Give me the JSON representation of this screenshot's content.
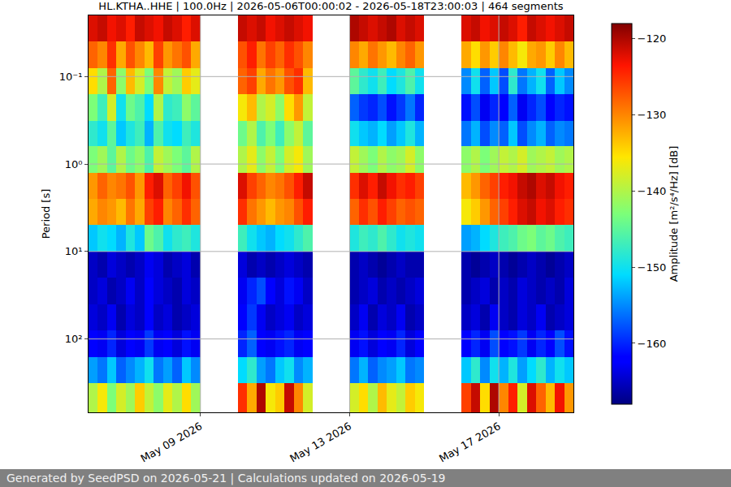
{
  "chart_data": {
    "type": "heatmap",
    "title": "HL.KTHA..HHE | 100.0Hz | 2026-05-06T00:00:02 - 2026-05-18T23:00:03 | 464 segments",
    "footer": "Generated by SeedPSD on 2026-05-21 | Calculations updated on 2026-05-19",
    "ylabel": "Period [s]",
    "x_edges": [
      "2026-05-06T00:00",
      "2026-05-06T06:00",
      "2026-05-06T12:00",
      "2026-05-06T18:00",
      "2026-05-07T00:00",
      "2026-05-07T06:00",
      "2026-05-07T12:00",
      "2026-05-07T18:00",
      "2026-05-08T00:00",
      "2026-05-08T06:00",
      "2026-05-08T12:00",
      "2026-05-08T18:00",
      "2026-05-09T00:00",
      "2026-05-09T06:00",
      "2026-05-09T12:00",
      "2026-05-09T18:00",
      "2026-05-10T00:00",
      "2026-05-10T06:00",
      "2026-05-10T12:00",
      "2026-05-10T18:00",
      "2026-05-11T00:00",
      "2026-05-11T06:00",
      "2026-05-11T12:00",
      "2026-05-11T18:00",
      "2026-05-12T00:00",
      "2026-05-12T06:00",
      "2026-05-12T12:00",
      "2026-05-12T18:00",
      "2026-05-13T00:00",
      "2026-05-13T06:00",
      "2026-05-13T12:00",
      "2026-05-13T18:00",
      "2026-05-14T00:00",
      "2026-05-14T06:00",
      "2026-05-14T12:00",
      "2026-05-14T18:00",
      "2026-05-15T00:00",
      "2026-05-15T06:00",
      "2026-05-15T12:00",
      "2026-05-15T18:00",
      "2026-05-16T00:00",
      "2026-05-16T06:00",
      "2026-05-16T12:00",
      "2026-05-16T18:00",
      "2026-05-17T00:00",
      "2026-05-17T06:00",
      "2026-05-17T12:00",
      "2026-05-17T18:00",
      "2026-05-18T00:00",
      "2026-05-18T06:00",
      "2026-05-18T12:00",
      "2026-05-18T18:00",
      "2026-05-19T00:00"
    ],
    "period_edges": [
      0.02,
      0.04,
      0.08,
      0.16,
      0.32,
      0.63,
      1.26,
      2.5,
      5,
      10,
      20,
      40,
      80,
      160,
      320,
      690
    ],
    "cells": [
      [
        -122,
        -121,
        -123,
        -122,
        -124,
        -121,
        -122,
        -123,
        -121,
        -122,
        -124,
        -122,
        null,
        null,
        null,
        null,
        -121,
        -122,
        -121,
        -123,
        -122,
        -121,
        -122,
        -123,
        null,
        null,
        null,
        null,
        -120,
        -121,
        -122,
        -121,
        -120,
        -122,
        -121,
        -122,
        null,
        null,
        null,
        null,
        -122,
        -121,
        -123,
        -122,
        -121,
        -122,
        -124,
        -121,
        -122,
        -123,
        -122,
        -121
      ],
      [
        -128,
        -130,
        -125,
        -132,
        -127,
        -130,
        -133,
        -126,
        -131,
        -129,
        -127,
        -132,
        null,
        null,
        null,
        null,
        -127,
        -124,
        -129,
        -126,
        -128,
        -125,
        -127,
        -130,
        null,
        null,
        null,
        null,
        -130,
        -132,
        -129,
        -131,
        -133,
        -130,
        -128,
        -131,
        null,
        null,
        null,
        null,
        -132,
        -135,
        -131,
        -134,
        -130,
        -133,
        -136,
        -132,
        -131,
        -134,
        -130,
        -133
      ],
      [
        -135,
        -140,
        -128,
        -142,
        -133,
        -138,
        -143,
        -130,
        -139,
        -141,
        -134,
        -137,
        null,
        null,
        null,
        null,
        -128,
        -126,
        -132,
        -129,
        -131,
        -127,
        -125,
        -133,
        null,
        null,
        null,
        null,
        -145,
        -148,
        -150,
        -147,
        -151,
        -149,
        -146,
        -150,
        null,
        null,
        null,
        null,
        -155,
        -150,
        -157,
        -152,
        -158,
        -148,
        -156,
        -153,
        -150,
        -157,
        -152,
        -155
      ],
      [
        -143,
        -147,
        -138,
        -150,
        -144,
        -146,
        -151,
        -140,
        -148,
        -147,
        -142,
        -145,
        null,
        null,
        null,
        null,
        -136,
        -133,
        -140,
        -138,
        -142,
        -135,
        -131,
        -139,
        null,
        null,
        null,
        null,
        -157,
        -159,
        -160,
        -158,
        -161,
        -159,
        -156,
        -160,
        null,
        null,
        null,
        null,
        -161,
        -158,
        -163,
        -160,
        -162,
        -157,
        -163,
        -160,
        -158,
        -162,
        -160,
        -161
      ],
      [
        -148,
        -150,
        -145,
        -152,
        -149,
        -147,
        -153,
        -146,
        -150,
        -151,
        -147,
        -149,
        null,
        null,
        null,
        null,
        -144,
        -140,
        -146,
        -143,
        -147,
        -142,
        -139,
        -145,
        null,
        null,
        null,
        null,
        -150,
        -152,
        -153,
        -151,
        -154,
        -152,
        -149,
        -153,
        null,
        null,
        null,
        null,
        -156,
        -153,
        -158,
        -155,
        -157,
        -152,
        -158,
        -155,
        -153,
        -157,
        -155,
        -156
      ],
      [
        -143,
        -141,
        -145,
        -140,
        -144,
        -142,
        -146,
        -139,
        -141,
        -143,
        -145,
        -140,
        null,
        null,
        null,
        null,
        -140,
        -137,
        -142,
        -139,
        -143,
        -138,
        -136,
        -141,
        null,
        null,
        null,
        null,
        -139,
        -141,
        -143,
        -140,
        -142,
        -141,
        -138,
        -142,
        null,
        null,
        null,
        null,
        -142,
        -140,
        -143,
        -141,
        -139,
        -140,
        -138,
        -141,
        -140,
        -139,
        -141,
        -140
      ],
      [
        -131,
        -128,
        -130,
        -129,
        -127,
        -131,
        -124,
        -122,
        -128,
        -126,
        -123,
        -127,
        null,
        null,
        null,
        null,
        -122,
        -126,
        -128,
        -130,
        -129,
        -127,
        -124,
        -121,
        null,
        null,
        null,
        null,
        -125,
        -122,
        -124,
        -121,
        -123,
        -125,
        -124,
        -126,
        null,
        null,
        null,
        null,
        -133,
        -131,
        -128,
        -126,
        -124,
        -123,
        -121,
        -120,
        -122,
        -121,
        -123,
        -124
      ],
      [
        -132,
        -130,
        -131,
        -133,
        -129,
        -132,
        -126,
        -124,
        -130,
        -128,
        -125,
        -128,
        null,
        null,
        null,
        null,
        -125,
        -129,
        -131,
        -133,
        -131,
        -130,
        -127,
        -124,
        null,
        null,
        null,
        null,
        -128,
        -125,
        -127,
        -124,
        -126,
        -128,
        -127,
        -128,
        null,
        null,
        null,
        null,
        -136,
        -134,
        -131,
        -128,
        -126,
        -124,
        -122,
        -121,
        -123,
        -122,
        -124,
        -125
      ],
      [
        -152,
        -150,
        -151,
        -153,
        -149,
        -152,
        -144,
        -146,
        -150,
        -148,
        -147,
        -149,
        null,
        null,
        null,
        null,
        -147,
        -150,
        -152,
        -153,
        -151,
        -150,
        -148,
        -146,
        null,
        null,
        null,
        null,
        -149,
        -147,
        -148,
        -146,
        -148,
        -150,
        -149,
        -150,
        null,
        null,
        null,
        null,
        -154,
        -153,
        -151,
        -149,
        -147,
        -146,
        -144,
        -143,
        -145,
        -144,
        -146,
        -147
      ],
      [
        -165,
        -166,
        -164,
        -165,
        -166,
        -165,
        -163,
        -164,
        -166,
        -165,
        -164,
        -166,
        null,
        null,
        null,
        null,
        -164,
        -166,
        -165,
        -166,
        -165,
        -164,
        -165,
        -166,
        null,
        null,
        null,
        null,
        -166,
        -165,
        -166,
        -167,
        -166,
        -165,
        -166,
        -166,
        null,
        null,
        null,
        null,
        -166,
        -167,
        -166,
        -165,
        -166,
        -167,
        -166,
        -165,
        -166,
        -167,
        -166,
        -165
      ],
      [
        -165,
        -164,
        -166,
        -165,
        -163,
        -165,
        -162,
        -164,
        -165,
        -166,
        -164,
        -165,
        null,
        null,
        null,
        null,
        -163,
        -160,
        -158,
        -162,
        -164,
        -161,
        -163,
        -165,
        null,
        null,
        null,
        null,
        -166,
        -165,
        -164,
        -166,
        -165,
        -166,
        -165,
        -164,
        null,
        null,
        null,
        null,
        -166,
        -165,
        -164,
        -166,
        -165,
        -166,
        -164,
        -165,
        -166,
        -165,
        -166,
        -164
      ],
      [
        -164,
        -165,
        -163,
        -166,
        -164,
        -165,
        -162,
        -165,
        -164,
        -166,
        -165,
        -164,
        null,
        null,
        null,
        null,
        -162,
        -159,
        -163,
        -165,
        -164,
        -163,
        -165,
        -164,
        null,
        null,
        null,
        null,
        -165,
        -163,
        -166,
        -164,
        -165,
        -163,
        -166,
        -165,
        null,
        null,
        null,
        null,
        -165,
        -164,
        -166,
        -163,
        -165,
        -166,
        -164,
        -165,
        -163,
        -166,
        -165,
        -164
      ],
      [
        -162,
        -163,
        -160,
        -164,
        -162,
        -163,
        -159,
        -163,
        -162,
        -164,
        -161,
        -163,
        null,
        null,
        null,
        null,
        -160,
        -157,
        -162,
        -163,
        -161,
        -160,
        -163,
        -162,
        null,
        null,
        null,
        null,
        -163,
        -161,
        -164,
        -162,
        -163,
        -160,
        -164,
        -162,
        null,
        null,
        null,
        null,
        -162,
        -160,
        -163,
        -158,
        -162,
        -161,
        -159,
        -163,
        -160,
        -162,
        -158,
        -161
      ],
      [
        -154,
        -156,
        -152,
        -157,
        -155,
        -153,
        -150,
        -156,
        -154,
        -157,
        -152,
        -155,
        null,
        null,
        null,
        null,
        -151,
        -148,
        -154,
        -156,
        -152,
        -150,
        -155,
        -153,
        null,
        null,
        null,
        null,
        -156,
        -153,
        -157,
        -155,
        -154,
        -152,
        -156,
        -155,
        null,
        null,
        null,
        null,
        -152,
        -148,
        -155,
        -150,
        -153,
        -149,
        -154,
        -151,
        -148,
        -153,
        -150,
        -152
      ],
      [
        -140,
        -136,
        -143,
        -138,
        -141,
        -134,
        -139,
        -142,
        -137,
        -140,
        -135,
        -141,
        null,
        null,
        null,
        null,
        -125,
        -132,
        -120,
        -136,
        -134,
        -121,
        -130,
        -138,
        null,
        null,
        null,
        null,
        -138,
        -135,
        -140,
        -133,
        -137,
        -139,
        -134,
        -136,
        null,
        null,
        null,
        null,
        -126,
        -121,
        -135,
        -120,
        -130,
        -124,
        -138,
        -122,
        -128,
        -133,
        -123,
        -131
      ]
    ],
    "xlim": [
      "2026-05-06T00:00",
      "2026-05-19T00:00"
    ],
    "xticks": [
      {
        "value": "2026-05-09T00:00",
        "label": "May 09 2026"
      },
      {
        "value": "2026-05-13T00:00",
        "label": "May 13 2026"
      },
      {
        "value": "2026-05-17T00:00",
        "label": "May 17 2026"
      }
    ],
    "ylim": [
      690,
      0.02
    ],
    "yticks": [
      {
        "value": 0.1,
        "label": "10⁻¹"
      },
      {
        "value": 1,
        "label": "10⁰"
      },
      {
        "value": 10,
        "label": "10¹"
      },
      {
        "value": 100,
        "label": "10²"
      }
    ],
    "log": "y",
    "grid": true,
    "colorbar": {
      "label": "Amplitude [m²/s⁴/Hz] [dB]",
      "range": [
        -168,
        -118
      ],
      "ticks": [
        {
          "value": -160,
          "label": "−160"
        },
        {
          "value": -150,
          "label": "−150"
        },
        {
          "value": -140,
          "label": "−140"
        },
        {
          "value": -130,
          "label": "−130"
        },
        {
          "value": -120,
          "label": "−120"
        }
      ]
    }
  }
}
